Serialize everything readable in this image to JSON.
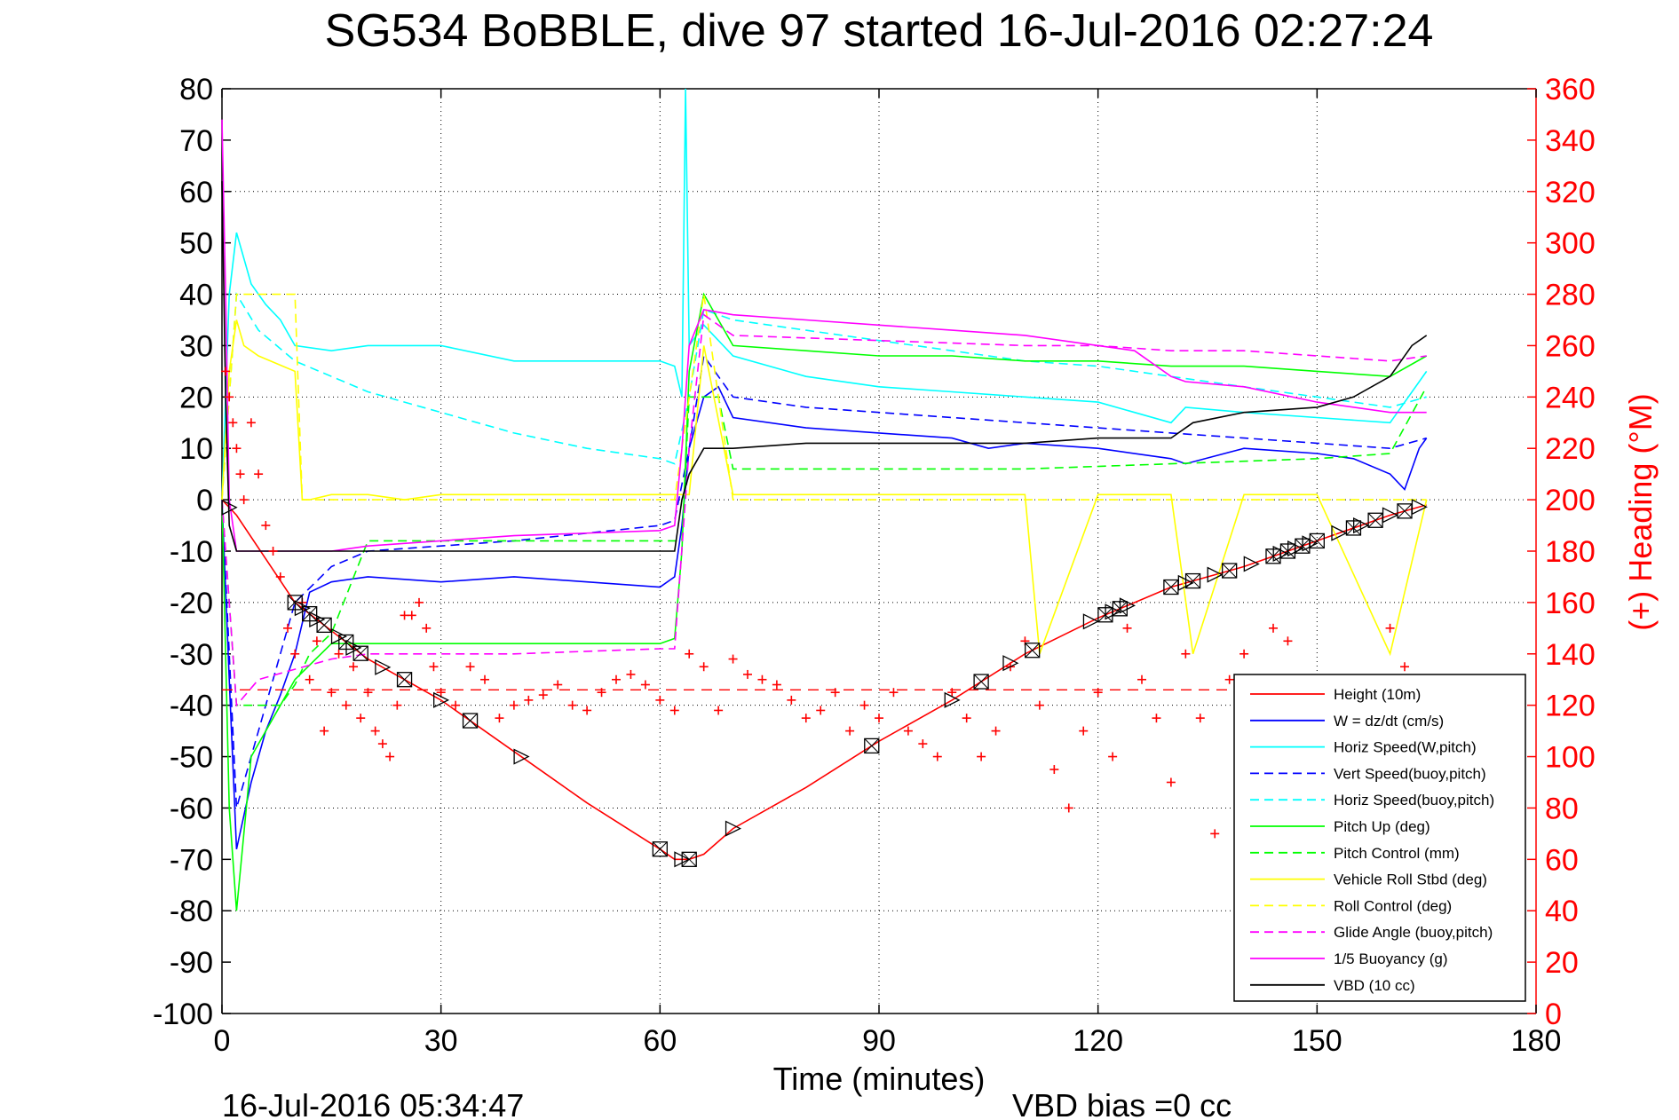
{
  "chart_data": {
    "type": "line",
    "title": "SG534 BoBBLE, dive 97 started 16-Jul-2016 02:27:24",
    "xlabel": "Time (minutes)",
    "ylabel_right": "(+) Heading (°M)",
    "footer_left": "16-Jul-2016 05:34:47",
    "footer_right": "VBD bias =0 cc",
    "xlim": [
      0,
      180
    ],
    "ylim_left": [
      -100,
      80
    ],
    "ylim_right": [
      0,
      360
    ],
    "x_ticks": [
      0,
      30,
      60,
      90,
      120,
      150,
      180
    ],
    "y_ticks_left": [
      80,
      70,
      60,
      50,
      40,
      30,
      20,
      10,
      0,
      -10,
      -20,
      -30,
      -40,
      -50,
      -60,
      -70,
      -80,
      -90,
      -100
    ],
    "y_ticks_right": [
      360,
      340,
      320,
      300,
      280,
      260,
      240,
      220,
      200,
      180,
      160,
      140,
      120,
      100,
      80,
      60,
      40,
      20,
      0
    ],
    "grid": true,
    "legend_position": "bottom-right",
    "colors": {
      "height": "#ff0000",
      "w": "#0000ff",
      "horiz": "#00ffff",
      "pitch": "#00ff00",
      "roll": "#ffff00",
      "glide": "#ff00ff",
      "vbd": "#000000",
      "heading_axis": "#ff0000"
    },
    "series": [
      {
        "name": "Height (10m)",
        "key": "height",
        "color": "#ff0000",
        "dash": "",
        "x": [
          0,
          2,
          10,
          20,
          30,
          40,
          50,
          60,
          62,
          64,
          66,
          70,
          80,
          90,
          100,
          110,
          120,
          130,
          140,
          150,
          160,
          165
        ],
        "y": [
          0,
          -3,
          -20,
          -31,
          -39,
          -49,
          -59,
          -68,
          -70,
          -70,
          -69,
          -64,
          -56,
          -47,
          -39,
          -30,
          -23,
          -17,
          -13,
          -8,
          -3,
          -1
        ]
      },
      {
        "name": "W = dz/dt (cm/s)",
        "key": "w",
        "color": "#0000ff",
        "dash": "",
        "x": [
          0,
          1,
          2,
          4,
          6,
          8,
          10,
          12,
          15,
          20,
          30,
          40,
          50,
          60,
          62,
          63,
          64,
          66,
          68,
          70,
          80,
          90,
          100,
          105,
          110,
          120,
          130,
          132,
          140,
          150,
          155,
          160,
          162,
          164,
          165
        ],
        "y": [
          0,
          -35,
          -68,
          -55,
          -45,
          -38,
          -30,
          -18,
          -16,
          -15,
          -16,
          -15,
          -16,
          -17,
          -15,
          -5,
          10,
          20,
          22,
          16,
          14,
          13,
          12,
          10,
          11,
          10,
          8,
          7,
          10,
          9,
          8,
          5,
          2,
          10,
          12
        ]
      },
      {
        "name": "Horiz Speed(W,pitch)",
        "key": "horiz_w",
        "color": "#00ffff",
        "dash": "",
        "x": [
          0,
          1,
          2,
          4,
          6,
          8,
          10,
          15,
          20,
          30,
          40,
          50,
          60,
          62,
          63,
          63.5,
          64,
          66,
          70,
          80,
          90,
          100,
          110,
          120,
          130,
          132,
          140,
          150,
          160,
          165
        ],
        "y": [
          0,
          40,
          52,
          42,
          38,
          35,
          30,
          29,
          30,
          30,
          27,
          27,
          27,
          26,
          20,
          80,
          30,
          34,
          28,
          24,
          22,
          21,
          20,
          19,
          15,
          18,
          17,
          16,
          15,
          25
        ]
      },
      {
        "name": "Vert Speed(buoy,pitch)",
        "key": "vert_buoy",
        "color": "#0000ff",
        "dash": "10,6",
        "x": [
          0,
          2,
          5,
          10,
          15,
          20,
          40,
          60,
          62,
          64,
          66,
          70,
          80,
          90,
          100,
          110,
          120,
          130,
          140,
          150,
          160,
          165
        ],
        "y": [
          0,
          -60,
          -45,
          -20,
          -13,
          -10,
          -8,
          -5,
          -4,
          10,
          28,
          20,
          18,
          17,
          16,
          15,
          14,
          13,
          12,
          11,
          10,
          12
        ]
      },
      {
        "name": "Horiz Speed(buoy,pitch)",
        "key": "horiz_buoy",
        "color": "#00ffff",
        "dash": "10,6",
        "x": [
          0,
          2,
          5,
          10,
          20,
          30,
          40,
          50,
          60,
          62,
          64,
          66,
          70,
          80,
          90,
          100,
          110,
          120,
          130,
          140,
          150,
          160,
          165
        ],
        "y": [
          0,
          40,
          33,
          27,
          21,
          17,
          13,
          10,
          8,
          7,
          20,
          37,
          35,
          33,
          31,
          29,
          27,
          26,
          24,
          22,
          20,
          18,
          20
        ]
      },
      {
        "name": "Pitch Up (deg)",
        "key": "pitch_up",
        "color": "#00ff00",
        "dash": "",
        "x": [
          0,
          1,
          2,
          4,
          8,
          10,
          15,
          20,
          40,
          60,
          62,
          63,
          64,
          66,
          70,
          80,
          90,
          100,
          110,
          120,
          130,
          140,
          150,
          160,
          165
        ],
        "y": [
          0,
          -60,
          -80,
          -50,
          -40,
          -35,
          -28,
          -28,
          -28,
          -28,
          -27,
          -10,
          25,
          40,
          30,
          29,
          28,
          28,
          27,
          27,
          26,
          26,
          25,
          24,
          28
        ]
      },
      {
        "name": "Pitch Control (mm)",
        "key": "pitch_ctrl",
        "color": "#00ff00",
        "dash": "10,6",
        "x": [
          0,
          2,
          4,
          6,
          8,
          10,
          12,
          15,
          20,
          40,
          62,
          63,
          64,
          66,
          68,
          70,
          90,
          110,
          130,
          150,
          160,
          165
        ],
        "y": [
          0,
          -40,
          -40,
          -40,
          -40,
          -36,
          -30,
          -26,
          -8,
          -8,
          -8,
          -8,
          20,
          20,
          20,
          6,
          6,
          6,
          7,
          8,
          9,
          22
        ]
      },
      {
        "name": "Vehicle Roll Stbd (deg)",
        "key": "roll",
        "color": "#ffff00",
        "dash": "",
        "x": [
          0,
          1,
          2,
          3,
          5,
          10,
          11,
          12,
          15,
          20,
          25,
          30,
          40,
          50,
          60,
          62,
          64,
          66,
          70,
          80,
          90,
          100,
          110,
          112,
          120,
          130,
          133,
          140,
          150,
          160,
          165
        ],
        "y": [
          0,
          25,
          35,
          30,
          28,
          25,
          0,
          0,
          1,
          1,
          0,
          1,
          1,
          1,
          1,
          1,
          1,
          30,
          1,
          1,
          1,
          1,
          1,
          -30,
          1,
          1,
          -30,
          1,
          1,
          -30,
          0
        ]
      },
      {
        "name": "Roll Control (deg)",
        "key": "roll_ctrl",
        "color": "#ffff00",
        "dash": "10,6",
        "x": [
          0,
          2,
          10,
          11,
          20,
          30,
          40,
          60,
          62,
          66,
          70,
          90,
          110,
          120,
          130,
          140,
          150,
          160,
          165
        ],
        "y": [
          0,
          40,
          40,
          0,
          0,
          0,
          0,
          0,
          0,
          40,
          0,
          0,
          0,
          0,
          0,
          0,
          0,
          0,
          0
        ]
      },
      {
        "name": "Glide Angle (buoy,pitch)",
        "key": "glide",
        "color": "#ff00ff",
        "dash": "10,6",
        "x": [
          0,
          2,
          5,
          10,
          15,
          20,
          40,
          60,
          62,
          64,
          66,
          70,
          90,
          110,
          120,
          130,
          140,
          150,
          160,
          165
        ],
        "y": [
          0,
          -40,
          -35,
          -33,
          -31,
          -30,
          -30,
          -29,
          -29,
          10,
          36,
          32,
          31,
          30,
          30,
          29,
          29,
          28,
          27,
          28
        ]
      },
      {
        "name": "1/5 Buoyancy (g)",
        "key": "buoyancy",
        "color": "#ff00ff",
        "dash": "",
        "x": [
          0,
          0.5,
          1,
          2,
          5,
          10,
          15,
          20,
          40,
          60,
          62,
          63,
          64,
          66,
          70,
          80,
          90,
          100,
          110,
          120,
          125,
          130,
          132,
          140,
          150,
          160,
          165
        ],
        "y": [
          74,
          40,
          0,
          -10,
          -10,
          -10,
          -10,
          -9,
          -7,
          -6,
          -5,
          10,
          30,
          37,
          36,
          35,
          34,
          33,
          32,
          30,
          29,
          24,
          23,
          22,
          19,
          17,
          17
        ]
      },
      {
        "name": "VBD (10 cc)",
        "key": "vbd",
        "color": "#000000",
        "dash": "",
        "x": [
          0,
          0.5,
          1,
          2,
          5,
          10,
          20,
          40,
          60,
          62,
          63,
          64,
          66,
          70,
          80,
          90,
          100,
          110,
          120,
          125,
          130,
          133,
          140,
          150,
          155,
          160,
          163,
          165
        ],
        "y": [
          62,
          20,
          -5,
          -10,
          -10,
          -10,
          -10,
          -10,
          -10,
          -10,
          0,
          5,
          10,
          10,
          11,
          11,
          11,
          11,
          12,
          12,
          12,
          15,
          17,
          18,
          20,
          24,
          30,
          32
        ]
      }
    ],
    "heading": {
      "name": "(+) Heading (°M)",
      "color": "#ff0000",
      "marker": "+",
      "mean_dashed": 126,
      "x": [
        0.5,
        1,
        1.5,
        2,
        2.5,
        3,
        4,
        5,
        6,
        7,
        8,
        9,
        10,
        11,
        12,
        13,
        14,
        15,
        16,
        17,
        18,
        19,
        20,
        21,
        22,
        23,
        24,
        25,
        26,
        27,
        28,
        29,
        30,
        32,
        34,
        36,
        38,
        40,
        42,
        44,
        46,
        48,
        50,
        52,
        54,
        56,
        58,
        60,
        62,
        64,
        66,
        68,
        70,
        72,
        74,
        76,
        78,
        80,
        82,
        84,
        86,
        88,
        90,
        92,
        94,
        96,
        98,
        100,
        102,
        104,
        106,
        108,
        110,
        112,
        114,
        116,
        118,
        120,
        122,
        124,
        126,
        128,
        130,
        132,
        134,
        136,
        138,
        140,
        142,
        144,
        146,
        148,
        150,
        152,
        154,
        156,
        158,
        160,
        162
      ],
      "y": [
        250,
        240,
        230,
        220,
        210,
        200,
        230,
        210,
        190,
        180,
        170,
        150,
        140,
        160,
        130,
        145,
        110,
        125,
        140,
        120,
        135,
        115,
        125,
        110,
        105,
        100,
        120,
        155,
        155,
        160,
        150,
        135,
        125,
        120,
        135,
        130,
        115,
        120,
        122,
        124,
        128,
        120,
        118,
        125,
        130,
        132,
        128,
        122,
        118,
        140,
        135,
        118,
        138,
        132,
        130,
        128,
        122,
        115,
        118,
        125,
        110,
        120,
        115,
        125,
        110,
        105,
        100,
        125,
        115,
        100,
        110,
        135,
        145,
        120,
        95,
        80,
        110,
        125,
        100,
        150,
        130,
        115,
        90,
        140,
        115,
        70,
        130,
        140,
        120,
        150,
        145,
        110,
        130,
        105,
        125,
        90,
        110,
        150,
        135
      ]
    },
    "markers_note": "triangle/box markers along Height trace",
    "legend": [
      {
        "label": "Height (10m)",
        "color": "#ff0000",
        "dash": ""
      },
      {
        "label": "W = dz/dt (cm/s)",
        "color": "#0000ff",
        "dash": ""
      },
      {
        "label": "Horiz Speed(W,pitch)",
        "color": "#00ffff",
        "dash": ""
      },
      {
        "label": "Vert Speed(buoy,pitch)",
        "color": "#0000ff",
        "dash": "10,6"
      },
      {
        "label": "Horiz Speed(buoy,pitch)",
        "color": "#00ffff",
        "dash": "10,6"
      },
      {
        "label": "Pitch Up (deg)",
        "color": "#00ff00",
        "dash": ""
      },
      {
        "label": "Pitch Control (mm)",
        "color": "#00ff00",
        "dash": "10,6"
      },
      {
        "label": "Vehicle Roll Stbd (deg)",
        "color": "#ffff00",
        "dash": ""
      },
      {
        "label": "Roll Control (deg)",
        "color": "#ffff00",
        "dash": "10,6"
      },
      {
        "label": "Glide Angle (buoy,pitch)",
        "color": "#ff00ff",
        "dash": "10,6"
      },
      {
        "label": "1/5 Buoyancy (g)",
        "color": "#ff00ff",
        "dash": ""
      },
      {
        "label": "VBD (10 cc)",
        "color": "#000000",
        "dash": ""
      }
    ]
  }
}
